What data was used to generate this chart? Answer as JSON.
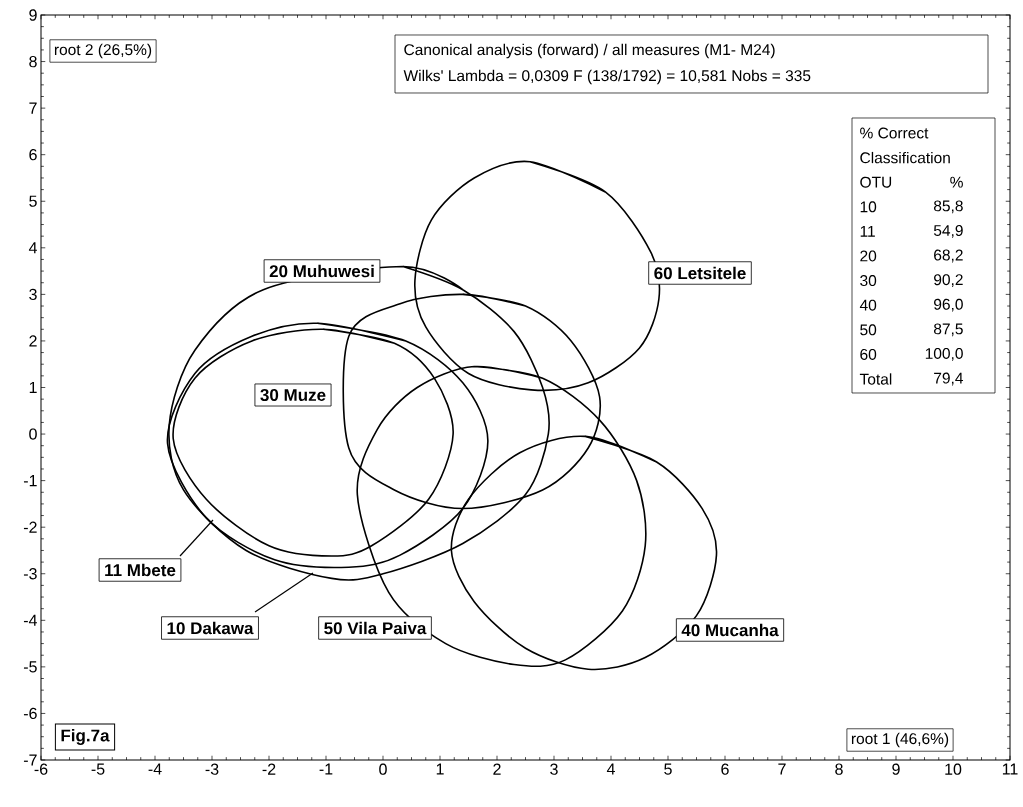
{
  "chart_data": {
    "type": "line",
    "xlim": [
      -6,
      11
    ],
    "ylim": [
      -7,
      9
    ],
    "xticks": [
      -6,
      -5,
      -4,
      -3,
      -2,
      -1,
      0,
      1,
      2,
      3,
      4,
      5,
      6,
      7,
      8,
      9,
      10,
      11
    ],
    "yticks": [
      -7,
      -6,
      -5,
      -4,
      -3,
      -2,
      -1,
      0,
      1,
      2,
      3,
      4,
      5,
      6,
      7,
      8,
      9
    ],
    "series": [
      {
        "name": "10 Dakawa",
        "color": "#000000",
        "x": [
          -1.15,
          0.4,
          1.4,
          1.84,
          1.4,
          0.3,
          -0.6,
          -1.9,
          -3.1,
          -3.78,
          -3.3,
          -2.3
        ],
        "values": [
          2.38,
          2.0,
          1.1,
          -0.15,
          -1.6,
          -2.6,
          -2.86,
          -2.7,
          -1.8,
          -0.2,
          1.3,
          2.1
        ]
      },
      {
        "name": "11 Mbete",
        "color": "#000000",
        "x": [
          -1.05,
          0.2,
          0.9,
          1.23,
          0.8,
          -0.2,
          -0.9,
          -2.0,
          -3.1,
          -3.68,
          -3.3,
          -2.3
        ],
        "values": [
          2.25,
          1.95,
          1.2,
          0.0,
          -1.4,
          -2.4,
          -2.62,
          -2.4,
          -1.4,
          -0.1,
          1.2,
          2.0
        ]
      },
      {
        "name": "20 Muhuwesi",
        "color": "#000000",
        "x": [
          0.35,
          1.4,
          2.3,
          2.8,
          2.9,
          2.5,
          1.4,
          0.0,
          -0.9,
          -2.4,
          -3.5,
          -3.75,
          -3.3,
          -2.1
        ],
        "values": [
          3.6,
          3.1,
          2.2,
          1.0,
          0.0,
          -1.3,
          -2.35,
          -3.0,
          -3.1,
          -2.5,
          -1.2,
          0.2,
          1.8,
          3.1
        ]
      },
      {
        "name": "30 Muze",
        "color": "#000000",
        "x": [
          1.4,
          2.5,
          3.3,
          3.8,
          3.6,
          2.8,
          1.4,
          0.2,
          -0.6,
          -0.6,
          0.3
        ],
        "values": [
          3.0,
          2.75,
          2.0,
          0.8,
          -0.3,
          -1.2,
          -1.6,
          -1.2,
          -0.3,
          2.1,
          2.8
        ]
      },
      {
        "name": "40 Mucanha",
        "color": "#000000",
        "x": [
          3.55,
          4.8,
          5.6,
          5.85,
          5.5,
          4.6,
          3.6,
          2.5,
          1.6,
          1.2,
          1.5,
          2.4
        ],
        "values": [
          -0.05,
          -0.6,
          -1.6,
          -2.6,
          -3.9,
          -4.8,
          -5.05,
          -4.6,
          -3.6,
          -2.5,
          -1.4,
          -0.4
        ]
      },
      {
        "name": "50 Vila Paiva",
        "color": "#000000",
        "x": [
          1.6,
          2.8,
          3.8,
          4.45,
          4.6,
          4.2,
          3.2,
          2.3,
          1.1,
          0.1,
          -0.45,
          -0.1,
          0.6
        ],
        "values": [
          1.45,
          1.2,
          0.3,
          -1.0,
          -2.4,
          -3.8,
          -4.85,
          -4.95,
          -4.5,
          -3.4,
          -1.3,
          0.1,
          1.0
        ]
      },
      {
        "name": "60 Letsitele",
        "color": "#000000",
        "x": [
          2.58,
          3.9,
          4.7,
          4.84,
          4.5,
          3.6,
          2.6,
          1.5,
          0.75,
          0.56,
          0.85,
          1.6
        ],
        "values": [
          5.85,
          5.2,
          3.9,
          2.9,
          1.85,
          1.1,
          0.95,
          1.3,
          2.3,
          3.3,
          4.6,
          5.5
        ]
      }
    ],
    "annotations": [
      "root 2 (26,5%)",
      "root 1 (46,6%)",
      "**Fig.7a**",
      "Canonical analysis (forward) / all measures (M1- M24)",
      "Wilks' Lambda = 0,0309   F (138/1792) = 10,581   Nobs = 335",
      "% Correct",
      "Classification",
      "OTU",
      "%",
      "10",
      "85,8",
      "11",
      "54,9",
      "20",
      "68,2",
      "30",
      "90,2",
      "40",
      "96,0",
      "50",
      "87,5",
      "60",
      "100,0",
      "Total",
      "79,4"
    ]
  }
}
